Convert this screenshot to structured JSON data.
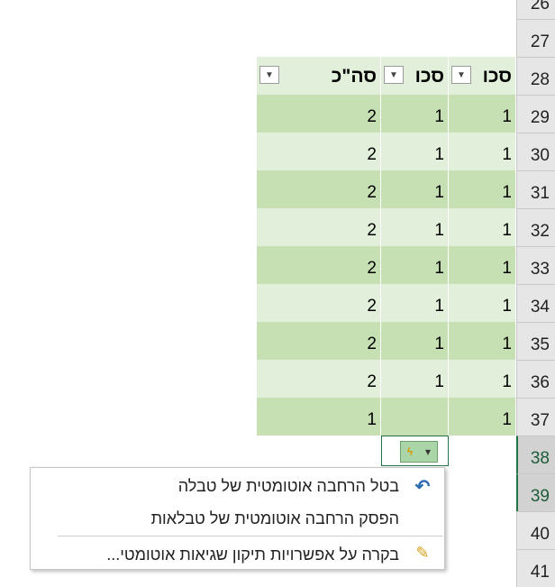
{
  "row_headers": [
    26,
    27,
    28,
    29,
    30,
    31,
    32,
    33,
    34,
    35,
    36,
    37,
    38,
    39,
    40,
    41
  ],
  "table": {
    "header": [
      "סכו",
      "סכו",
      "סה\"כ"
    ],
    "rows": [
      [
        1,
        1,
        2
      ],
      [
        1,
        1,
        2
      ],
      [
        1,
        1,
        2
      ],
      [
        1,
        1,
        2
      ],
      [
        1,
        1,
        2
      ],
      [
        1,
        1,
        2
      ],
      [
        1,
        1,
        2
      ],
      [
        1,
        1,
        2
      ],
      [
        1,
        null,
        1
      ]
    ]
  },
  "menu": {
    "items": [
      "בטל הרחבה אוטומטית של טבלה",
      "הפסק הרחבה אוטומטית של טבלאות",
      "בקרה על אפשרויות תיקון שגיאות אוטומטי..."
    ]
  }
}
